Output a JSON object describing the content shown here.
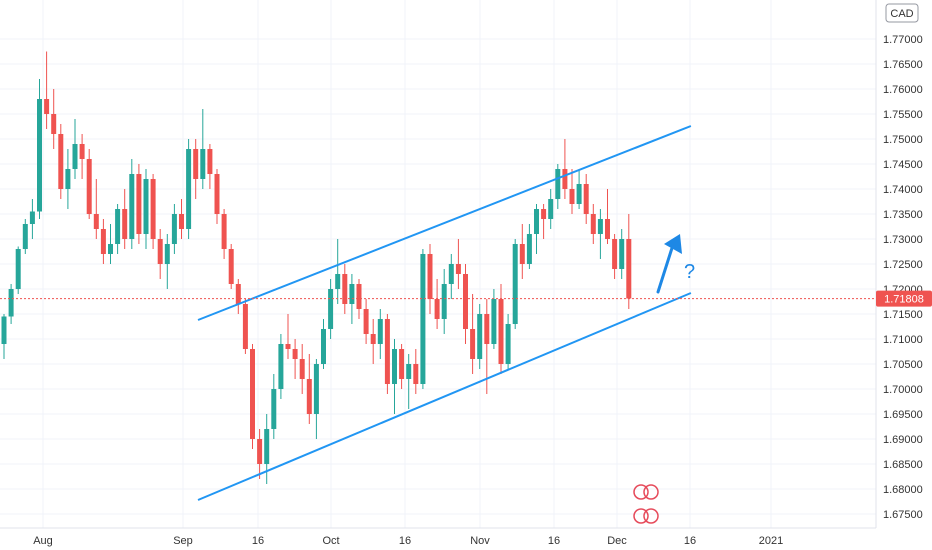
{
  "chart_data": {
    "type": "candlestick",
    "currency_label": "CAD",
    "last_price": "1.71808",
    "y_tick_labels": [
      "1.67500",
      "1.68000",
      "1.68500",
      "1.69000",
      "1.69500",
      "1.70000",
      "1.70500",
      "1.71000",
      "1.71500",
      "1.72000",
      "1.72500",
      "1.73000",
      "1.73500",
      "1.74000",
      "1.74500",
      "1.75000",
      "1.75500",
      "1.76000",
      "1.76500",
      "1.77000"
    ],
    "x_tick_labels": [
      "Aug",
      "Sep",
      "16",
      "Oct",
      "16",
      "Nov",
      "16",
      "Dec",
      "16",
      "2021"
    ],
    "ylim": [
      1.674,
      1.778
    ],
    "annotation_text": "?",
    "colors": {
      "up": "#26a69a",
      "down": "#ef5350",
      "channel": "#2196f3",
      "arrow": "#1e88e5",
      "price_line": "#ef5350"
    },
    "channel": {
      "upper": [
        [
          0,
          1.7138
        ],
        [
          93,
          1.7526
        ]
      ],
      "lower": [
        [
          0,
          1.6778
        ],
        [
          93,
          1.7192
        ]
      ]
    },
    "candles": [
      [
        1.709,
        1.715,
        1.706,
        1.7145
      ],
      [
        1.7145,
        1.721,
        1.713,
        1.72
      ],
      [
        1.72,
        1.7285,
        1.719,
        1.728
      ],
      [
        1.728,
        1.734,
        1.727,
        1.733
      ],
      [
        1.733,
        1.738,
        1.73,
        1.7355
      ],
      [
        1.7355,
        1.762,
        1.734,
        1.758
      ],
      [
        1.758,
        1.7675,
        1.752,
        1.755
      ],
      [
        1.755,
        1.76,
        1.748,
        1.751
      ],
      [
        1.751,
        1.753,
        1.738,
        1.74
      ],
      [
        1.74,
        1.748,
        1.736,
        1.744
      ],
      [
        1.744,
        1.754,
        1.742,
        1.749
      ],
      [
        1.749,
        1.751,
        1.742,
        1.746
      ],
      [
        1.746,
        1.748,
        1.734,
        1.735
      ],
      [
        1.735,
        1.742,
        1.73,
        1.732
      ],
      [
        1.732,
        1.734,
        1.725,
        1.727
      ],
      [
        1.727,
        1.733,
        1.725,
        1.729
      ],
      [
        1.729,
        1.737,
        1.727,
        1.736
      ],
      [
        1.736,
        1.74,
        1.728,
        1.73
      ],
      [
        1.73,
        1.746,
        1.728,
        1.743
      ],
      [
        1.743,
        1.745,
        1.729,
        1.731
      ],
      [
        1.731,
        1.744,
        1.728,
        1.742
      ],
      [
        1.742,
        1.743,
        1.728,
        1.73
      ],
      [
        1.73,
        1.732,
        1.722,
        1.725
      ],
      [
        1.725,
        1.731,
        1.72,
        1.729
      ],
      [
        1.729,
        1.737,
        1.727,
        1.735
      ],
      [
        1.735,
        1.738,
        1.73,
        1.732
      ],
      [
        1.732,
        1.75,
        1.73,
        1.748
      ],
      [
        1.748,
        1.75,
        1.738,
        1.742
      ],
      [
        1.742,
        1.756,
        1.74,
        1.748
      ],
      [
        1.748,
        1.749,
        1.74,
        1.743
      ],
      [
        1.743,
        1.744,
        1.733,
        1.735
      ],
      [
        1.735,
        1.736,
        1.726,
        1.728
      ],
      [
        1.728,
        1.729,
        1.72,
        1.721
      ],
      [
        1.721,
        1.722,
        1.715,
        1.717
      ],
      [
        1.717,
        1.718,
        1.707,
        1.708
      ],
      [
        1.708,
        1.709,
        1.688,
        1.69
      ],
      [
        1.69,
        1.692,
        1.682,
        1.685
      ],
      [
        1.685,
        1.695,
        1.681,
        1.692
      ],
      [
        1.692,
        1.703,
        1.69,
        1.7
      ],
      [
        1.7,
        1.711,
        1.698,
        1.709
      ],
      [
        1.709,
        1.715,
        1.706,
        1.708
      ],
      [
        1.708,
        1.71,
        1.702,
        1.706
      ],
      [
        1.706,
        1.709,
        1.699,
        1.702
      ],
      [
        1.702,
        1.707,
        1.693,
        1.695
      ],
      [
        1.695,
        1.706,
        1.69,
        1.705
      ],
      [
        1.705,
        1.714,
        1.704,
        1.712
      ],
      [
        1.712,
        1.722,
        1.71,
        1.72
      ],
      [
        1.72,
        1.73,
        1.717,
        1.723
      ],
      [
        1.723,
        1.725,
        1.715,
        1.717
      ],
      [
        1.717,
        1.723,
        1.713,
        1.721
      ],
      [
        1.721,
        1.722,
        1.714,
        1.716
      ],
      [
        1.716,
        1.718,
        1.709,
        1.711
      ],
      [
        1.711,
        1.714,
        1.705,
        1.709
      ],
      [
        1.709,
        1.716,
        1.706,
        1.714
      ],
      [
        1.714,
        1.715,
        1.699,
        1.701
      ],
      [
        1.701,
        1.71,
        1.695,
        1.708
      ],
      [
        1.708,
        1.709,
        1.7,
        1.702
      ],
      [
        1.702,
        1.707,
        1.696,
        1.705
      ],
      [
        1.705,
        1.708,
        1.699,
        1.701
      ],
      [
        1.701,
        1.728,
        1.7,
        1.727
      ],
      [
        1.727,
        1.729,
        1.715,
        1.718
      ],
      [
        1.718,
        1.722,
        1.712,
        1.714
      ],
      [
        1.714,
        1.724,
        1.711,
        1.721
      ],
      [
        1.721,
        1.727,
        1.718,
        1.725
      ],
      [
        1.725,
        1.73,
        1.72,
        1.723
      ],
      [
        1.723,
        1.725,
        1.709,
        1.712
      ],
      [
        1.712,
        1.719,
        1.703,
        1.706
      ],
      [
        1.706,
        1.717,
        1.704,
        1.715
      ],
      [
        1.715,
        1.718,
        1.699,
        1.709
      ],
      [
        1.709,
        1.72,
        1.708,
        1.718
      ],
      [
        1.718,
        1.721,
        1.703,
        1.705
      ],
      [
        1.705,
        1.715,
        1.704,
        1.713
      ],
      [
        1.713,
        1.73,
        1.712,
        1.729
      ],
      [
        1.729,
        1.733,
        1.722,
        1.725
      ],
      [
        1.725,
        1.733,
        1.724,
        1.731
      ],
      [
        1.731,
        1.737,
        1.727,
        1.736
      ],
      [
        1.736,
        1.737,
        1.73,
        1.734
      ],
      [
        1.734,
        1.74,
        1.732,
        1.738
      ],
      [
        1.738,
        1.745,
        1.736,
        1.744
      ],
      [
        1.744,
        1.75,
        1.738,
        1.74
      ],
      [
        1.74,
        1.744,
        1.735,
        1.737
      ],
      [
        1.737,
        1.744,
        1.736,
        1.741
      ],
      [
        1.741,
        1.743,
        1.733,
        1.735
      ],
      [
        1.735,
        1.737,
        1.729,
        1.731
      ],
      [
        1.731,
        1.736,
        1.726,
        1.734
      ],
      [
        1.734,
        1.74,
        1.729,
        1.73
      ],
      [
        1.73,
        1.731,
        1.722,
        1.724
      ],
      [
        1.724,
        1.732,
        1.722,
        1.73
      ],
      [
        1.73,
        1.735,
        1.716,
        1.7181
      ]
    ]
  }
}
